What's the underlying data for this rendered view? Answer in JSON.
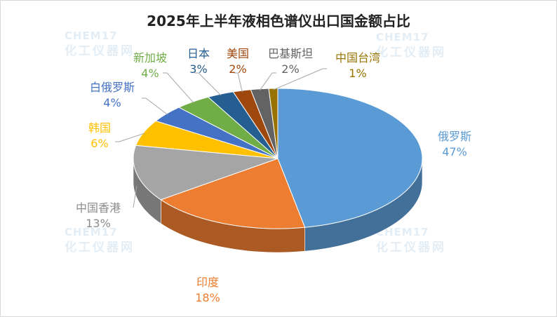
{
  "title": "2025年上半年液相色谱仪出口国金额占比",
  "watermark": {
    "en": "CHEM17",
    "cn": "化工仪器网"
  },
  "chart_data": {
    "type": "pie",
    "title": "2025年上半年液相色谱仪出口国金额占比",
    "slices": [
      {
        "label": "俄罗斯",
        "value": 47,
        "display": "47%",
        "color": "#5b9bd5"
      },
      {
        "label": "印度",
        "value": 18,
        "display": "18%",
        "color": "#ed7d31"
      },
      {
        "label": "中国香港",
        "value": 13,
        "display": "13%",
        "color": "#a5a5a5"
      },
      {
        "label": "韩国",
        "value": 6,
        "display": "6%",
        "color": "#ffc000"
      },
      {
        "label": "白俄罗斯",
        "value": 4,
        "display": "4%",
        "color": "#4472c4"
      },
      {
        "label": "新加坡",
        "value": 4,
        "display": "4%",
        "color": "#70ad47"
      },
      {
        "label": "日本",
        "value": 3,
        "display": "3%",
        "color": "#255e91"
      },
      {
        "label": "美国",
        "value": 2,
        "display": "2%",
        "color": "#9e480e"
      },
      {
        "label": "巴基斯坦",
        "value": 2,
        "display": "2%",
        "color": "#636363"
      },
      {
        "label": "中国台湾",
        "value": 1,
        "display": "1%",
        "color": "#997300"
      }
    ]
  }
}
